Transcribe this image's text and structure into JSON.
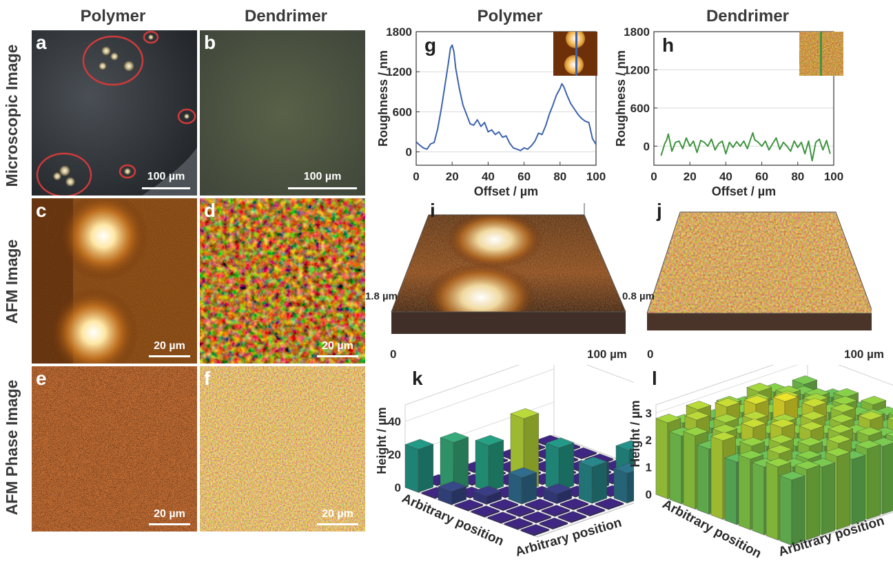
{
  "columns": {
    "left_polymer": "Polymer",
    "left_dendrimer": "Dendrimer",
    "right_polymer": "Polymer",
    "right_dendrimer": "Dendrimer"
  },
  "row_labels": {
    "microscopic": "Microscopic Image",
    "afm": "AFM Image",
    "afm_phase": "AFM Phase Image"
  },
  "panels": {
    "a": {
      "letter": "a",
      "scale": "100 µm"
    },
    "b": {
      "letter": "b",
      "scale": "100 µm"
    },
    "c": {
      "letter": "c",
      "scale": "20 µm"
    },
    "d": {
      "letter": "d",
      "scale": "20 µm"
    },
    "e": {
      "letter": "e",
      "scale": "20 µm"
    },
    "f": {
      "letter": "f",
      "scale": "20 µm"
    },
    "g": {
      "letter": "g"
    },
    "h": {
      "letter": "h"
    },
    "i": {
      "letter": "i",
      "z_label": "1.8 µm",
      "x_start": "0",
      "x_end": "100 µm"
    },
    "j": {
      "letter": "j",
      "z_label": "0.8 µm",
      "x_start": "0",
      "x_end": "100 µm"
    },
    "k": {
      "letter": "k"
    },
    "l": {
      "letter": "l"
    }
  },
  "colors": {
    "polymer_line": "#3b62ad",
    "dendrimer_line": "#3f9440",
    "ellipse": "#d13a3a",
    "afm_dark": "#2a0e02",
    "afm_mid": "#b0601a",
    "afm_bright": "#fff2c2",
    "phase_bg": "#bd6a32"
  },
  "chart_data": [
    {
      "id": "g",
      "type": "line",
      "title": "",
      "xlabel": "Offset / µm",
      "ylabel": "Roughness / nm",
      "xlim": [
        0,
        100
      ],
      "ylim": [
        -200,
        1800
      ],
      "xticks": [
        0,
        20,
        40,
        60,
        80,
        100
      ],
      "yticks": [
        0,
        600,
        1200,
        1800
      ],
      "grid": true,
      "series": [
        {
          "color": "#3b62ad",
          "x": [
            0,
            2,
            4,
            6,
            8,
            10,
            12,
            14,
            16,
            18,
            19,
            20,
            21,
            22,
            24,
            26,
            28,
            30,
            32,
            34,
            36,
            38,
            40,
            42,
            44,
            46,
            48,
            50,
            52,
            54,
            56,
            58,
            60,
            62,
            64,
            66,
            68,
            70,
            72,
            74,
            76,
            78,
            80,
            81,
            82,
            84,
            86,
            88,
            90,
            92,
            94,
            96,
            98,
            100
          ],
          "values": [
            150,
            100,
            60,
            40,
            120,
            140,
            350,
            650,
            1000,
            1350,
            1550,
            1600,
            1500,
            1250,
            950,
            700,
            560,
            420,
            400,
            480,
            380,
            440,
            300,
            330,
            260,
            300,
            220,
            240,
            130,
            60,
            40,
            20,
            60,
            40,
            90,
            160,
            280,
            260,
            390,
            560,
            700,
            850,
            950,
            1020,
            980,
            840,
            720,
            640,
            560,
            500,
            460,
            440,
            200,
            110
          ]
        }
      ]
    },
    {
      "id": "h",
      "type": "line",
      "title": "",
      "xlabel": "Offset / µm",
      "ylabel": "Roughness / nm",
      "xlim": [
        0,
        100
      ],
      "ylim": [
        -300,
        1800
      ],
      "xticks": [
        0,
        20,
        40,
        60,
        80,
        100
      ],
      "yticks": [
        0,
        600,
        1200,
        1800
      ],
      "grid": true,
      "series": [
        {
          "color": "#3f9440",
          "x": [
            4,
            5,
            6,
            7,
            8,
            9,
            10,
            12,
            14,
            16,
            18,
            20,
            22,
            24,
            26,
            28,
            30,
            32,
            34,
            36,
            38,
            40,
            42,
            44,
            46,
            48,
            50,
            52,
            54,
            55,
            56,
            58,
            60,
            62,
            64,
            66,
            68,
            70,
            72,
            74,
            76,
            78,
            80,
            82,
            84,
            86,
            88,
            90,
            92,
            94,
            96,
            98
          ],
          "values": [
            -150,
            -60,
            40,
            90,
            190,
            60,
            -80,
            60,
            80,
            -40,
            130,
            0,
            80,
            -100,
            90,
            60,
            0,
            110,
            -60,
            40,
            80,
            -120,
            60,
            -20,
            70,
            0,
            80,
            -40,
            130,
            210,
            100,
            60,
            0,
            80,
            -60,
            40,
            130,
            -50,
            60,
            0,
            -80,
            80,
            -20,
            60,
            -120,
            80,
            -230,
            60,
            110,
            -60,
            90,
            -120
          ]
        }
      ]
    },
    {
      "id": "k",
      "type": "bar",
      "title": "",
      "xlabel": "Arbitrary position",
      "ylabel": "Height / µm",
      "zlim": [
        0,
        50
      ],
      "zticks": [
        0,
        20,
        40
      ],
      "grid": true,
      "grid_size": [
        8,
        8
      ],
      "values": [
        [
          26,
          0,
          0,
          0,
          0,
          0,
          0,
          0
        ],
        [
          0,
          30,
          0,
          0,
          0,
          0,
          0,
          0
        ],
        [
          8,
          0,
          28,
          0,
          0,
          0,
          0,
          0
        ],
        [
          0,
          5,
          0,
          44,
          0,
          0,
          0,
          0
        ],
        [
          0,
          0,
          16,
          0,
          26,
          0,
          0,
          0
        ],
        [
          0,
          0,
          0,
          6,
          0,
          14,
          0,
          0
        ],
        [
          0,
          0,
          0,
          0,
          22,
          0,
          24,
          0
        ],
        [
          0,
          0,
          0,
          0,
          0,
          18,
          0,
          22
        ]
      ]
    },
    {
      "id": "l",
      "type": "bar",
      "title": "",
      "xlabel": "Arbitrary position",
      "ylabel": "Height / µm",
      "zlim": [
        0,
        3.3
      ],
      "zticks": [
        0,
        1,
        2,
        3
      ],
      "grid": true,
      "grid_size": [
        10,
        10
      ],
      "values": [
        [
          2.8,
          2.6,
          2.9,
          2.4,
          2.7,
          2.5,
          2.8,
          2.6,
          2.3,
          2.5
        ],
        [
          2.5,
          2.9,
          2.4,
          3.0,
          2.6,
          2.8,
          2.4,
          2.7,
          2.5,
          2.2
        ],
        [
          2.7,
          2.3,
          2.8,
          2.5,
          3.1,
          2.6,
          2.9,
          2.4,
          2.6,
          2.4
        ],
        [
          2.4,
          2.8,
          2.6,
          2.9,
          2.4,
          3.2,
          2.5,
          2.8,
          2.3,
          2.6
        ],
        [
          2.9,
          2.5,
          3.0,
          2.6,
          2.8,
          2.5,
          3.0,
          2.6,
          2.7,
          2.3
        ],
        [
          2.3,
          2.7,
          2.5,
          3.0,
          2.6,
          2.9,
          2.4,
          2.8,
          2.5,
          2.7
        ],
        [
          2.6,
          2.4,
          2.8,
          2.5,
          2.9,
          2.6,
          2.8,
          2.4,
          2.6,
          2.5
        ],
        [
          2.5,
          2.8,
          2.4,
          2.7,
          2.5,
          2.8,
          2.6,
          2.9,
          2.4,
          2.6
        ],
        [
          2.7,
          2.5,
          2.6,
          2.4,
          2.8,
          2.4,
          2.7,
          2.5,
          2.8,
          2.3
        ],
        [
          2.4,
          2.6,
          2.5,
          2.7,
          2.4,
          2.6,
          2.5,
          2.6,
          2.4,
          2.5
        ]
      ]
    }
  ]
}
